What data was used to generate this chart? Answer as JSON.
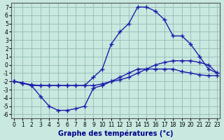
{
  "title": "Graphe des températures (°c)",
  "hours": [
    0,
    1,
    2,
    3,
    4,
    5,
    6,
    7,
    8,
    9,
    10,
    11,
    12,
    13,
    14,
    15,
    16,
    17,
    18,
    19,
    20,
    21,
    22,
    23
  ],
  "line_min": [
    -2.0,
    -2.2,
    -2.5,
    -3.8,
    -5.0,
    -5.5,
    -5.5,
    -5.3,
    -5.0,
    -2.8,
    -2.5,
    -2.0,
    -1.5,
    -1.0,
    -0.5,
    -0.5,
    -0.5,
    -0.5,
    -0.5,
    -0.8,
    -1.0,
    -1.2,
    -1.3,
    -1.3
  ],
  "line_mid": [
    -2.0,
    -2.2,
    -2.4,
    -2.5,
    -2.5,
    -2.5,
    -2.5,
    -2.5,
    -2.5,
    -2.5,
    -2.3,
    -2.0,
    -1.8,
    -1.5,
    -1.0,
    -0.5,
    0.0,
    0.3,
    0.5,
    0.5,
    0.5,
    0.3,
    0.0,
    -1.0
  ],
  "line_max": [
    -2.0,
    -2.2,
    -2.5,
    -2.5,
    -2.5,
    -2.5,
    -2.5,
    -2.5,
    -2.5,
    -1.5,
    -0.5,
    2.5,
    4.0,
    5.0,
    7.0,
    7.0,
    6.5,
    5.5,
    3.5,
    3.5,
    2.5,
    1.0,
    -0.5,
    -1.0
  ],
  "line_color": "#1c1caa",
  "bg_color": "#c8e8e0",
  "grid_color": "#9ac0b8",
  "ylim": [
    -6.5,
    7.5
  ],
  "yticks": [
    -6,
    -5,
    -4,
    -3,
    -2,
    -1,
    0,
    1,
    2,
    3,
    4,
    5,
    6,
    7
  ],
  "xlim": [
    -0.3,
    23.3
  ],
  "xticks": [
    0,
    1,
    2,
    3,
    4,
    5,
    6,
    7,
    8,
    9,
    10,
    11,
    12,
    13,
    14,
    15,
    16,
    17,
    18,
    19,
    20,
    21,
    22,
    23
  ],
  "xlabel_color": "#00008b",
  "xlabel_fontsize": 7,
  "tick_fontsize": 5.5,
  "linewidth": 1.0,
  "marker": "+",
  "markersize": 4,
  "markeredgewidth": 1.0
}
